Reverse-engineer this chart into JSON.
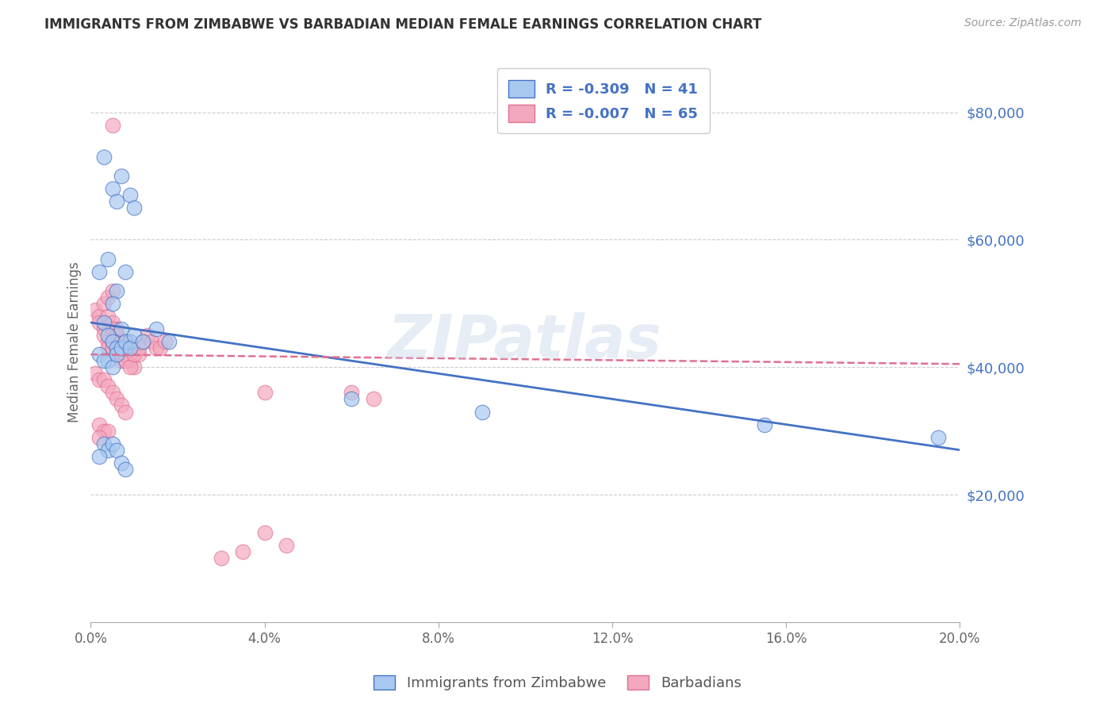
{
  "title": "IMMIGRANTS FROM ZIMBABWE VS BARBADIAN MEDIAN FEMALE EARNINGS CORRELATION CHART",
  "source": "Source: ZipAtlas.com",
  "ylabel": "Median Female Earnings",
  "yticks": [
    20000,
    40000,
    60000,
    80000
  ],
  "ytick_labels": [
    "$20,000",
    "$40,000",
    "$60,000",
    "$80,000"
  ],
  "xlim": [
    0.0,
    0.2
  ],
  "ylim": [
    0,
    88000
  ],
  "legend_blue_r": "R = -0.309",
  "legend_blue_n": "N = 41",
  "legend_pink_r": "R = -0.007",
  "legend_pink_n": "N = 65",
  "legend_label_blue": "Immigrants from Zimbabwe",
  "legend_label_pink": "Barbadians",
  "blue_color": "#a8c8f0",
  "pink_color": "#f4a8be",
  "trend_blue_color": "#4472c4",
  "trend_pink_color": "#e07090",
  "watermark": "ZIPatlas",
  "background_color": "#ffffff",
  "grid_color": "#cccccc",
  "blue_scatter_x": [
    0.003,
    0.007,
    0.005,
    0.009,
    0.006,
    0.01,
    0.004,
    0.008,
    0.002,
    0.006,
    0.003,
    0.005,
    0.004,
    0.007,
    0.005,
    0.008,
    0.006,
    0.009,
    0.002,
    0.004,
    0.003,
    0.005,
    0.006,
    0.007,
    0.008,
    0.009,
    0.01,
    0.012,
    0.015,
    0.018,
    0.06,
    0.09,
    0.155,
    0.195,
    0.003,
    0.004,
    0.005,
    0.002,
    0.006,
    0.007,
    0.008
  ],
  "blue_scatter_y": [
    73000,
    70000,
    68000,
    67000,
    66000,
    65000,
    57000,
    55000,
    55000,
    52000,
    47000,
    50000,
    45000,
    46000,
    44000,
    43000,
    43000,
    44000,
    42000,
    41000,
    41000,
    40000,
    42000,
    43000,
    44000,
    43000,
    45000,
    44000,
    46000,
    44000,
    35000,
    33000,
    31000,
    29000,
    28000,
    27000,
    28000,
    26000,
    27000,
    25000,
    24000
  ],
  "pink_scatter_x": [
    0.001,
    0.002,
    0.003,
    0.004,
    0.005,
    0.002,
    0.003,
    0.004,
    0.005,
    0.006,
    0.003,
    0.004,
    0.005,
    0.006,
    0.007,
    0.004,
    0.005,
    0.006,
    0.007,
    0.008,
    0.005,
    0.006,
    0.007,
    0.008,
    0.009,
    0.006,
    0.007,
    0.008,
    0.009,
    0.01,
    0.007,
    0.008,
    0.009,
    0.01,
    0.011,
    0.008,
    0.009,
    0.01,
    0.011,
    0.012,
    0.013,
    0.014,
    0.015,
    0.016,
    0.017,
    0.04,
    0.06,
    0.065,
    0.001,
    0.002,
    0.003,
    0.004,
    0.005,
    0.006,
    0.007,
    0.008,
    0.002,
    0.003,
    0.004,
    0.002,
    0.04,
    0.045,
    0.03,
    0.035,
    0.005
  ],
  "pink_scatter_y": [
    49000,
    48000,
    50000,
    51000,
    52000,
    47000,
    46000,
    48000,
    47000,
    46000,
    45000,
    44000,
    46000,
    45000,
    44000,
    43000,
    44000,
    43000,
    42000,
    44000,
    43000,
    45000,
    44000,
    43000,
    44000,
    42000,
    43000,
    44000,
    42000,
    43000,
    41000,
    42000,
    41000,
    40000,
    42000,
    41000,
    40000,
    42000,
    43000,
    44000,
    45000,
    44000,
    43000,
    43000,
    44000,
    36000,
    36000,
    35000,
    39000,
    38000,
    38000,
    37000,
    36000,
    35000,
    34000,
    33000,
    31000,
    30000,
    30000,
    29000,
    14000,
    12000,
    10000,
    11000,
    78000
  ],
  "blue_trend_x": [
    0.0,
    0.2
  ],
  "blue_trend_y": [
    47000,
    27000
  ],
  "pink_trend_x": [
    0.0,
    0.2
  ],
  "pink_trend_y": [
    42000,
    40500
  ]
}
